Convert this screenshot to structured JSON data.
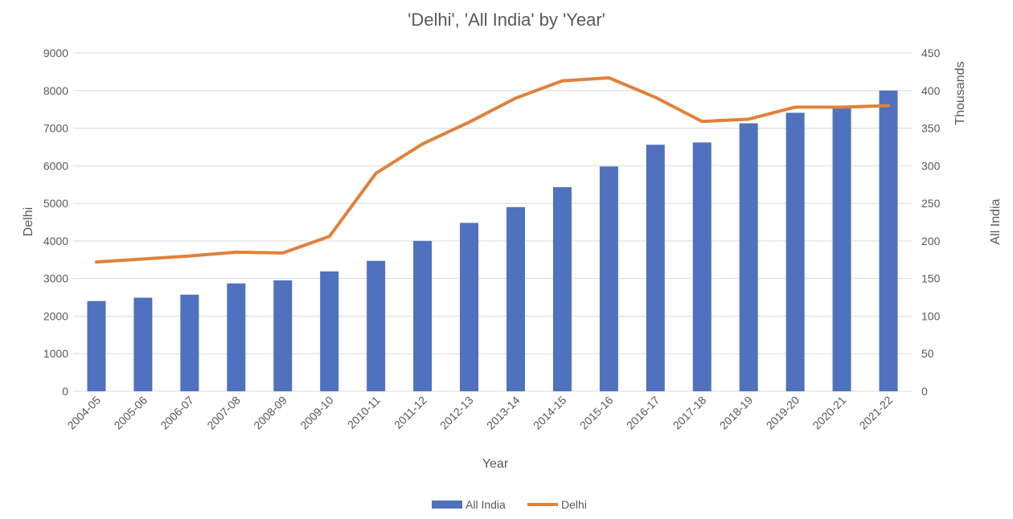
{
  "chart_data": {
    "type": "bar+line",
    "title": "'Delhi', 'All India' by 'Year'",
    "xlabel": "Year",
    "ylabel_left": "Delhi",
    "ylabel_right": "All India",
    "right_axis_units_label": "Thousands",
    "categories": [
      "2004-05",
      "2005-06",
      "2006-07",
      "2007-08",
      "2008-09",
      "2009-10",
      "2010-11",
      "2011-12",
      "2012-13",
      "2013-14",
      "2014-15",
      "2015-16",
      "2016-17",
      "2017-18",
      "2018-19",
      "2019-20",
      "2020-21",
      "2021-22"
    ],
    "ylim_left": [
      0,
      9000
    ],
    "yticks_left": [
      0,
      1000,
      2000,
      3000,
      4000,
      5000,
      6000,
      7000,
      8000,
      9000
    ],
    "ylim_right": [
      0,
      450
    ],
    "yticks_right": [
      0,
      50,
      100,
      150,
      200,
      250,
      300,
      350,
      400,
      450
    ],
    "grid": true,
    "legend_position": "bottom",
    "series": [
      {
        "name": "All India",
        "type": "bar",
        "axis": "left",
        "color": "#4f71be",
        "values": [
          2400,
          2490,
          2570,
          2870,
          2950,
          3190,
          3470,
          4000,
          4480,
          4900,
          5430,
          5980,
          6560,
          6620,
          7130,
          7410,
          7560,
          8000
        ]
      },
      {
        "name": "Delhi",
        "type": "line",
        "axis": "right",
        "color": "#e0813a",
        "values": [
          172,
          176,
          180,
          185,
          184,
          206,
          290,
          329,
          358,
          390,
          413,
          417,
          391,
          359,
          362,
          378,
          378,
          380
        ]
      }
    ]
  }
}
